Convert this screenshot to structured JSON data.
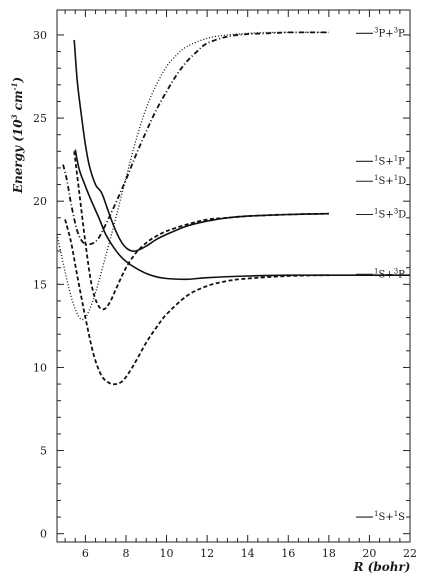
{
  "chart_data": {
    "type": "line",
    "xlabel": "R (bohr)",
    "ylabel": "Energy (10",
    "ylabel_sup": "3",
    "ylabel_rest": " cm",
    "ylabel_sup2": "-1",
    "ylabel_end": ")",
    "xlim": [
      4.6,
      22
    ],
    "ylim": [
      -0.5,
      31.5
    ],
    "xticks": [
      6,
      8,
      10,
      12,
      14,
      16,
      18,
      20,
      22
    ],
    "yticks": [
      0,
      5,
      10,
      15,
      20,
      25,
      30
    ],
    "grid": false,
    "series": [
      {
        "style": "solid",
        "x": [
          5.45,
          5.6,
          5.8,
          6.0,
          6.2,
          6.5,
          6.8,
          7.1,
          7.4,
          7.7,
          8.0,
          8.3,
          8.6,
          9.0,
          9.5,
          10,
          11,
          12,
          13,
          14,
          16,
          18
        ],
        "y": [
          29.7,
          27.2,
          25.2,
          23.4,
          22.1,
          21.0,
          20.5,
          19.5,
          18.5,
          17.7,
          17.2,
          17.0,
          17.05,
          17.3,
          17.7,
          18.0,
          18.5,
          18.8,
          19.0,
          19.1,
          19.2,
          19.25
        ]
      },
      {
        "style": "solid",
        "x": [
          5.5,
          5.7,
          6.0,
          6.3,
          6.7,
          7.0,
          7.4,
          7.8,
          8.2,
          8.6,
          9.0,
          9.5,
          10,
          11,
          12,
          14,
          16,
          18,
          20,
          22
        ],
        "y": [
          23.1,
          21.9,
          20.9,
          20.0,
          18.9,
          18.0,
          17.2,
          16.6,
          16.2,
          15.9,
          15.65,
          15.45,
          15.35,
          15.3,
          15.4,
          15.5,
          15.55,
          15.55,
          15.55,
          15.55
        ]
      },
      {
        "style": "dashed",
        "x": [
          5.45,
          5.7,
          6.0,
          6.3,
          6.6,
          6.9,
          7.2,
          7.5,
          7.8,
          8.1,
          8.5,
          9.0,
          9.5,
          10,
          11,
          12,
          13,
          14,
          16,
          18
        ],
        "y": [
          23.0,
          20.5,
          17.5,
          15.0,
          13.8,
          13.5,
          13.9,
          14.7,
          15.5,
          16.2,
          16.9,
          17.5,
          17.9,
          18.2,
          18.6,
          18.9,
          19.0,
          19.1,
          19.2,
          19.25
        ]
      },
      {
        "style": "dashed",
        "x": [
          5.0,
          5.3,
          5.6,
          6.0,
          6.4,
          6.8,
          7.2,
          7.5,
          7.8,
          8.1,
          8.5,
          9.0,
          9.5,
          10,
          11,
          12,
          13,
          14,
          16,
          18
        ],
        "y": [
          18.9,
          17.5,
          15.5,
          13.0,
          10.8,
          9.5,
          9.05,
          9.0,
          9.15,
          9.6,
          10.4,
          11.5,
          12.4,
          13.2,
          14.3,
          14.9,
          15.2,
          15.35,
          15.5,
          15.55
        ]
      },
      {
        "style": "dotted",
        "x": [
          4.6,
          4.9,
          5.2,
          5.5,
          5.8,
          6.1,
          6.5,
          7.0,
          7.5,
          8.0,
          8.5,
          9.0,
          9.5,
          10,
          10.5,
          11,
          12,
          13,
          14,
          15,
          16,
          17,
          18
        ],
        "y": [
          18.0,
          16.3,
          14.7,
          13.5,
          12.9,
          13.2,
          14.5,
          16.7,
          19.0,
          21.4,
          23.7,
          25.6,
          27.0,
          28.1,
          28.8,
          29.3,
          29.8,
          30.0,
          30.1,
          30.15,
          30.15,
          30.15,
          30.15
        ]
      },
      {
        "style": "dashdot",
        "x": [
          4.9,
          5.1,
          5.3,
          5.6,
          5.9,
          6.2,
          6.6,
          7.0,
          7.5,
          8.0,
          8.5,
          9.0,
          9.5,
          10,
          10.5,
          11,
          11.5,
          12,
          13,
          14,
          15,
          16,
          17,
          18
        ],
        "y": [
          22.2,
          21.2,
          19.8,
          18.2,
          17.5,
          17.4,
          17.7,
          18.6,
          19.9,
          21.3,
          22.8,
          24.2,
          25.5,
          26.6,
          27.6,
          28.4,
          29.0,
          29.5,
          29.9,
          30.05,
          30.1,
          30.15,
          30.15,
          30.15
        ]
      }
    ],
    "asymptotes": [
      {
        "label_a": "P+",
        "sup_a": "3",
        "label_b": "P",
        "sup_b": "3",
        "y": 30.1
      },
      {
        "label_a": "S+",
        "sup_a": "1",
        "label_b": "P",
        "sup_b": "1",
        "y": 22.4
      },
      {
        "label_a": "S+",
        "sup_a": "1",
        "label_b": "D",
        "sup_b": "1",
        "y": 21.2
      },
      {
        "label_a": "S+",
        "sup_a": "1",
        "label_b": "D",
        "sup_b": "3",
        "y": 19.2
      },
      {
        "label_a": "S+",
        "sup_a": "1",
        "label_b": "P",
        "sup_b": "3",
        "y": 15.6
      },
      {
        "label_a": "S+",
        "sup_a": "1",
        "label_b": "S",
        "sup_b": "1",
        "y": 1.0
      }
    ]
  }
}
